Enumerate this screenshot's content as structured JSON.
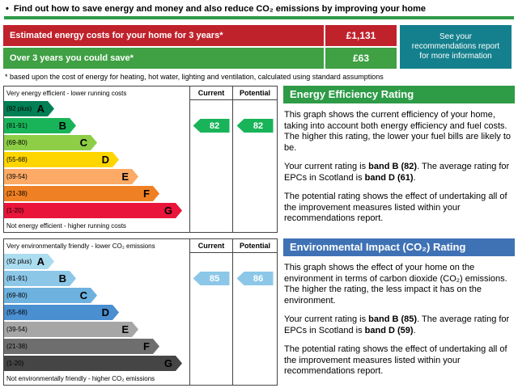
{
  "page": {
    "heading": {
      "bullet": "•",
      "text": "Find out how to save energy and money and also reduce CO₂ emissions by improving your home"
    },
    "accent_green": "#2e9b47"
  },
  "costs": {
    "rows": [
      {
        "label": "Estimated energy costs for your home for 3 years*",
        "value": "£1,131",
        "color": "#c0222c"
      },
      {
        "label": "Over 3 years you could save*",
        "value": "£63",
        "color": "#3fa044"
      }
    ],
    "side_note": "See your recommendations report for more information",
    "side_note_color": "#15808d",
    "footnote": "* based upon the cost of energy for heating, hot water, lighting and ventilation, calculated using standard assumptions"
  },
  "energy": {
    "panel_title": "Energy Efficiency Rating",
    "panel_color": "#2e9b47",
    "chart": {
      "top_label": "Very energy efficient - lower running costs",
      "bottom_label": "Not energy efficient - higher running costs",
      "columns": [
        "Current",
        "Potential"
      ],
      "current": "82",
      "potential": "82",
      "arrow_color": "#19b459",
      "bands": [
        {
          "letter": "A",
          "range": "(92 plus)",
          "color": "#008054"
        },
        {
          "letter": "B",
          "range": "(81-91)",
          "color": "#19b459"
        },
        {
          "letter": "C",
          "range": "(69-80)",
          "color": "#8dce46"
        },
        {
          "letter": "D",
          "range": "(55-68)",
          "color": "#ffd500"
        },
        {
          "letter": "E",
          "range": "(39-54)",
          "color": "#fcaa65"
        },
        {
          "letter": "F",
          "range": "(21-38)",
          "color": "#ef8023"
        },
        {
          "letter": "G",
          "range": "(1-20)",
          "color": "#e9153b"
        }
      ]
    },
    "paragraphs": {
      "p1": "This graph shows the current efficiency of your home, taking into account both energy efficiency and fuel costs. The higher this rating, the lower your fuel bills are likely to be.",
      "p2_pre": "Your current rating is ",
      "p2_current": "band B (82)",
      "p2_mid": ". The average rating for EPCs in Scotland is ",
      "p2_average": "band D (61)",
      "p2_post": ".",
      "p3": "The potential rating shows the effect of undertaking all of the improvement measures listed within your recommendations report."
    }
  },
  "environment": {
    "panel_title": "Environmental Impact (CO₂) Rating",
    "panel_color": "#3f72b5",
    "chart": {
      "top_label": "Very environmentally friendly - lower CO₂ emissions",
      "bottom_label": "Not environmentally friendly - higher CO₂ emissions",
      "columns": [
        "Current",
        "Potential"
      ],
      "current": "85",
      "potential": "86",
      "arrow_color": "#8dc7e8",
      "bands": [
        {
          "letter": "A",
          "range": "(92 plus)",
          "color": "#abdcf0"
        },
        {
          "letter": "B",
          "range": "(81-91)",
          "color": "#8dc7e8"
        },
        {
          "letter": "C",
          "range": "(69-80)",
          "color": "#6db1de"
        },
        {
          "letter": "D",
          "range": "(55-68)",
          "color": "#4a8fd0"
        },
        {
          "letter": "E",
          "range": "(39-54)",
          "color": "#a6a6a6"
        },
        {
          "letter": "F",
          "range": "(21-38)",
          "color": "#6e6e6e"
        },
        {
          "letter": "G",
          "range": "(1-20)",
          "color": "#454545"
        }
      ]
    },
    "paragraphs": {
      "p1": "This graph shows the effect of your home on the environment in terms of carbon dioxide (CO₂) emissions. The higher the rating, the less impact it has on the environment.",
      "p2_pre": "Your current rating is ",
      "p2_current": "band B (85)",
      "p2_mid": ". The average rating for EPCs in Scotland is ",
      "p2_average": "band D (59)",
      "p2_post": ".",
      "p3": "The potential rating shows the effect of undertaking all of the improvement measures listed within your recommendations report."
    }
  }
}
